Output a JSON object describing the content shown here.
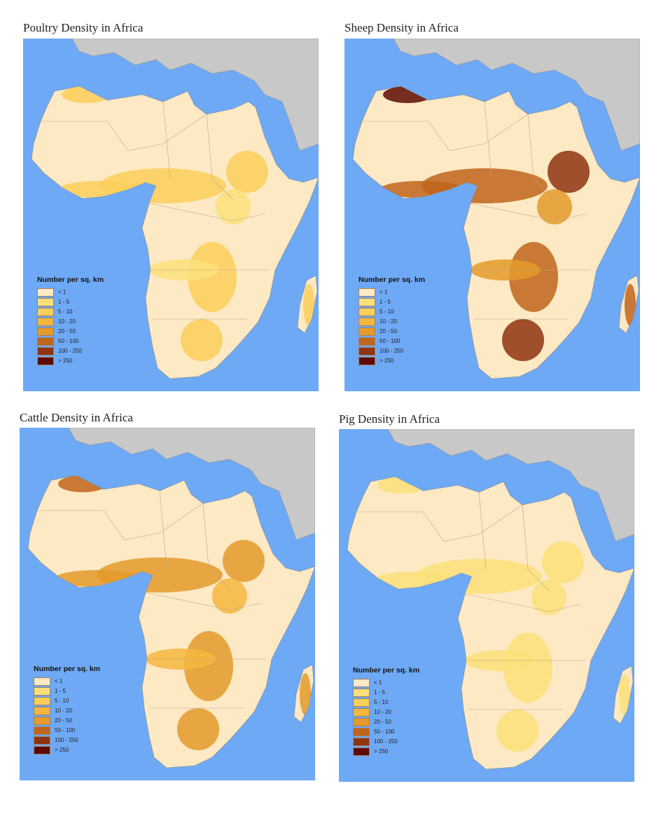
{
  "maps": [
    {
      "title": "Poultry Density in Africa",
      "intensity": 0.25
    },
    {
      "title": "Sheep Density in Africa",
      "intensity": 0.8
    },
    {
      "title": "Cattle Density in Africa",
      "intensity": 0.55
    },
    {
      "title": "Pig Density in Africa",
      "intensity": 0.1
    }
  ],
  "legend": {
    "title": "Number per sq. km",
    "classes": [
      {
        "label": "< 1",
        "color": "#fde9c4"
      },
      {
        "label": "1 - 5",
        "color": "#fbe07a"
      },
      {
        "label": "5 - 10",
        "color": "#fbcf5a"
      },
      {
        "label": "10 - 20",
        "color": "#f5b640"
      },
      {
        "label": "20 - 50",
        "color": "#e49a2c"
      },
      {
        "label": "50 - 100",
        "color": "#c0651c"
      },
      {
        "label": "100 - 250",
        "color": "#8e3410"
      },
      {
        "label": "> 250",
        "color": "#5e0a04"
      }
    ]
  },
  "colors": {
    "ocean": "#6ea9f5",
    "other_land": "#c8c8c8",
    "border": "#b9a58a"
  }
}
